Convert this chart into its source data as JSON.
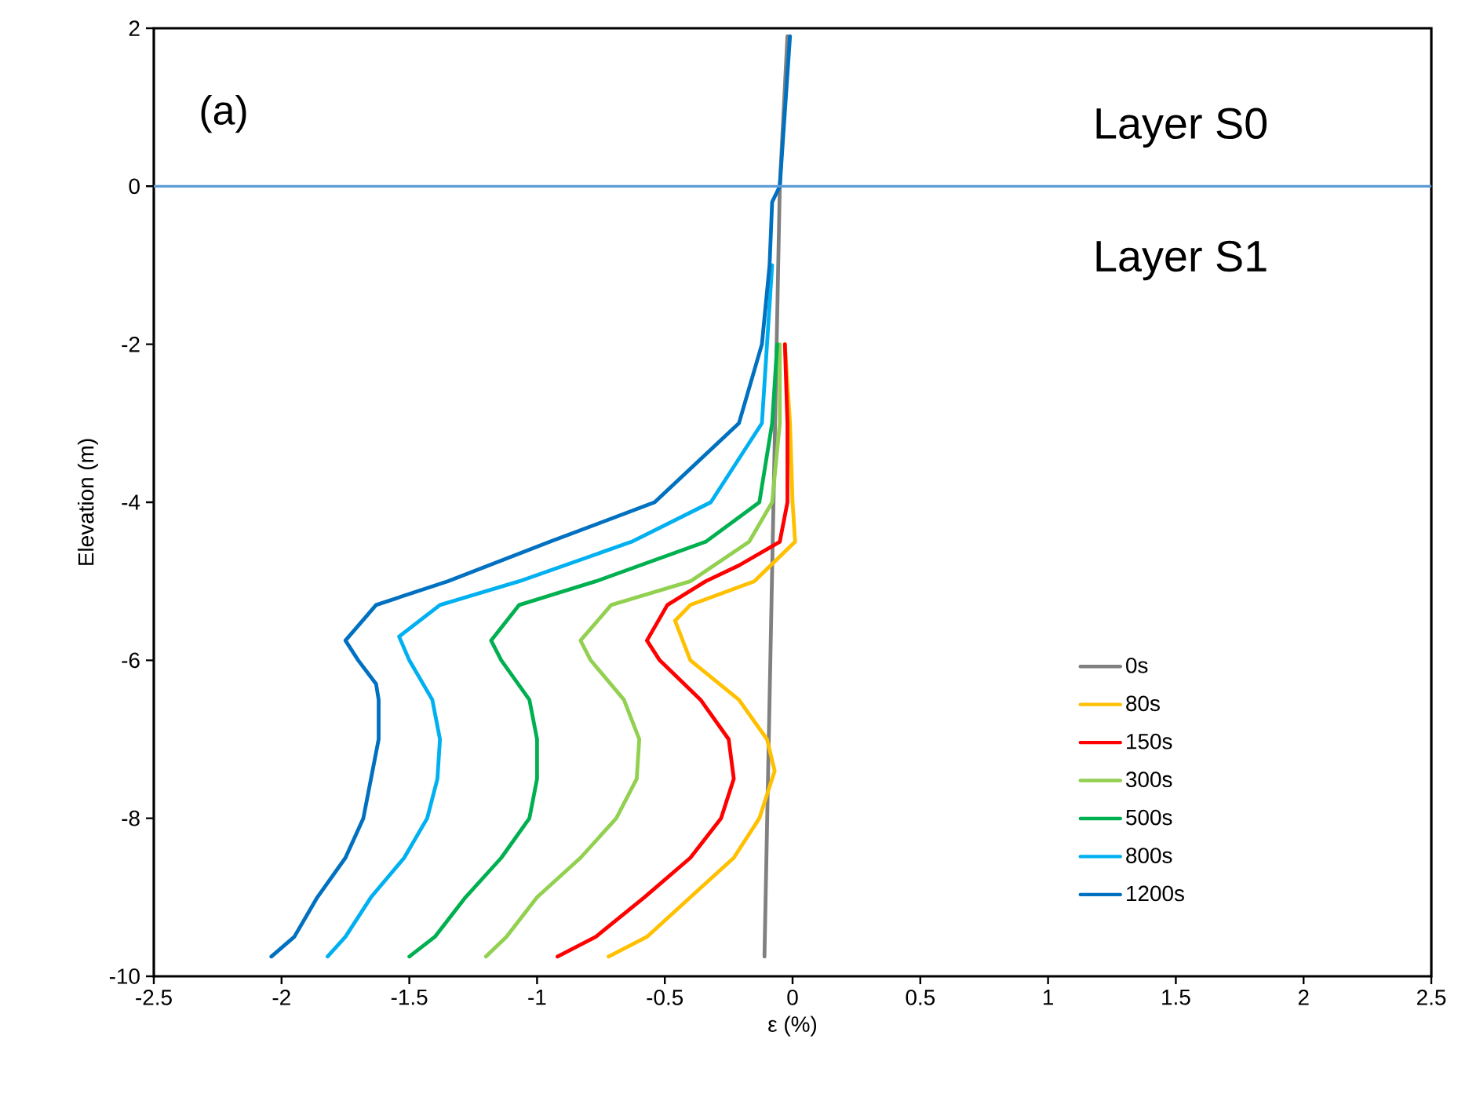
{
  "chart_data": {
    "type": "line",
    "xlabel": "ε (%)",
    "ylabel": "Elevation (m)",
    "xlim": [
      -2.5,
      2.5
    ],
    "ylim": [
      -10,
      2
    ],
    "xticks": [
      -2.5,
      -2,
      -1.5,
      -1,
      -0.5,
      0,
      0.5,
      1,
      1.5,
      2,
      2.5
    ],
    "yticks": [
      -10,
      -8,
      -6,
      -4,
      -2,
      0,
      2
    ],
    "grid": false,
    "legend": "right",
    "annotations": [
      "(a)",
      "Layer S0",
      "Layer S1"
    ],
    "ref_lines": [
      {
        "axis": "y",
        "value": 0,
        "color": "#5b9bd5"
      }
    ],
    "series": [
      {
        "name": "0s",
        "color": "#808080",
        "x": [
          -0.02,
          -0.05,
          -0.11
        ],
        "values": [
          1.9,
          0,
          -9.75
        ]
      },
      {
        "name": "80s",
        "color": "#ffc000",
        "x": [
          -0.03,
          -0.01,
          0.0,
          0.01,
          -0.15,
          -0.4,
          -0.46,
          -0.4,
          -0.21,
          -0.1,
          -0.07,
          -0.13,
          -0.23,
          -0.4,
          -0.57,
          -0.72
        ],
        "values": [
          -2,
          -3,
          -4,
          -4.5,
          -5,
          -5.3,
          -5.5,
          -6,
          -6.5,
          -7,
          -7.4,
          -8,
          -8.5,
          -9,
          -9.5,
          -9.75
        ]
      },
      {
        "name": "150s",
        "color": "#ff0000",
        "x": [
          -0.03,
          -0.02,
          -0.02,
          -0.05,
          -0.21,
          -0.34,
          -0.49,
          -0.57,
          -0.52,
          -0.36,
          -0.25,
          -0.23,
          -0.28,
          -0.4,
          -0.58,
          -0.77,
          -0.92
        ],
        "values": [
          -2,
          -3,
          -4,
          -4.5,
          -4.8,
          -5,
          -5.3,
          -5.75,
          -6,
          -6.5,
          -7,
          -7.5,
          -8,
          -8.5,
          -9,
          -9.5,
          -9.75
        ]
      },
      {
        "name": "300s",
        "color": "#92d050",
        "x": [
          -0.05,
          -0.05,
          -0.08,
          -0.17,
          -0.4,
          -0.71,
          -0.83,
          -0.79,
          -0.66,
          -0.6,
          -0.61,
          -0.69,
          -0.83,
          -1.0,
          -1.12,
          -1.2
        ],
        "values": [
          -2,
          -3,
          -4,
          -4.5,
          -5,
          -5.3,
          -5.75,
          -6,
          -6.5,
          -7,
          -7.5,
          -8,
          -8.5,
          -9,
          -9.5,
          -9.75
        ]
      },
      {
        "name": "500s",
        "color": "#00b050",
        "x": [
          -0.06,
          -0.08,
          -0.13,
          -0.34,
          -0.77,
          -1.07,
          -1.18,
          -1.14,
          -1.03,
          -1.0,
          -1.0,
          -1.03,
          -1.14,
          -1.28,
          -1.4,
          -1.5
        ],
        "values": [
          -2,
          -3,
          -4,
          -4.5,
          -5,
          -5.3,
          -5.75,
          -6,
          -6.5,
          -7,
          -7.5,
          -8,
          -8.5,
          -9,
          -9.5,
          -9.75
        ]
      },
      {
        "name": "800s",
        "color": "#00b0f0",
        "x": [
          -0.08,
          -0.1,
          -0.12,
          -0.32,
          -0.63,
          -1.07,
          -1.38,
          -1.54,
          -1.5,
          -1.41,
          -1.38,
          -1.39,
          -1.43,
          -1.52,
          -1.65,
          -1.75,
          -1.82
        ],
        "values": [
          -1,
          -2,
          -3,
          -4,
          -4.5,
          -5,
          -5.3,
          -5.7,
          -6,
          -6.5,
          -7,
          -7.5,
          -8,
          -8.5,
          -9,
          -9.5,
          -9.75
        ]
      },
      {
        "name": "1200s",
        "color": "#0070c0",
        "x": [
          -0.01,
          -0.05,
          -0.08,
          -0.09,
          -0.12,
          -0.21,
          -0.54,
          -0.95,
          -1.35,
          -1.63,
          -1.75,
          -1.7,
          -1.63,
          -1.62,
          -1.62,
          -1.65,
          -1.68,
          -1.75,
          -1.86,
          -1.95,
          -2.04
        ],
        "values": [
          1.9,
          0,
          -0.2,
          -1,
          -2,
          -3,
          -4,
          -4.5,
          -5,
          -5.3,
          -5.75,
          -6,
          -6.3,
          -6.5,
          -7,
          -7.5,
          -8,
          -8.5,
          -9,
          -9.5,
          -9.75
        ]
      }
    ]
  }
}
